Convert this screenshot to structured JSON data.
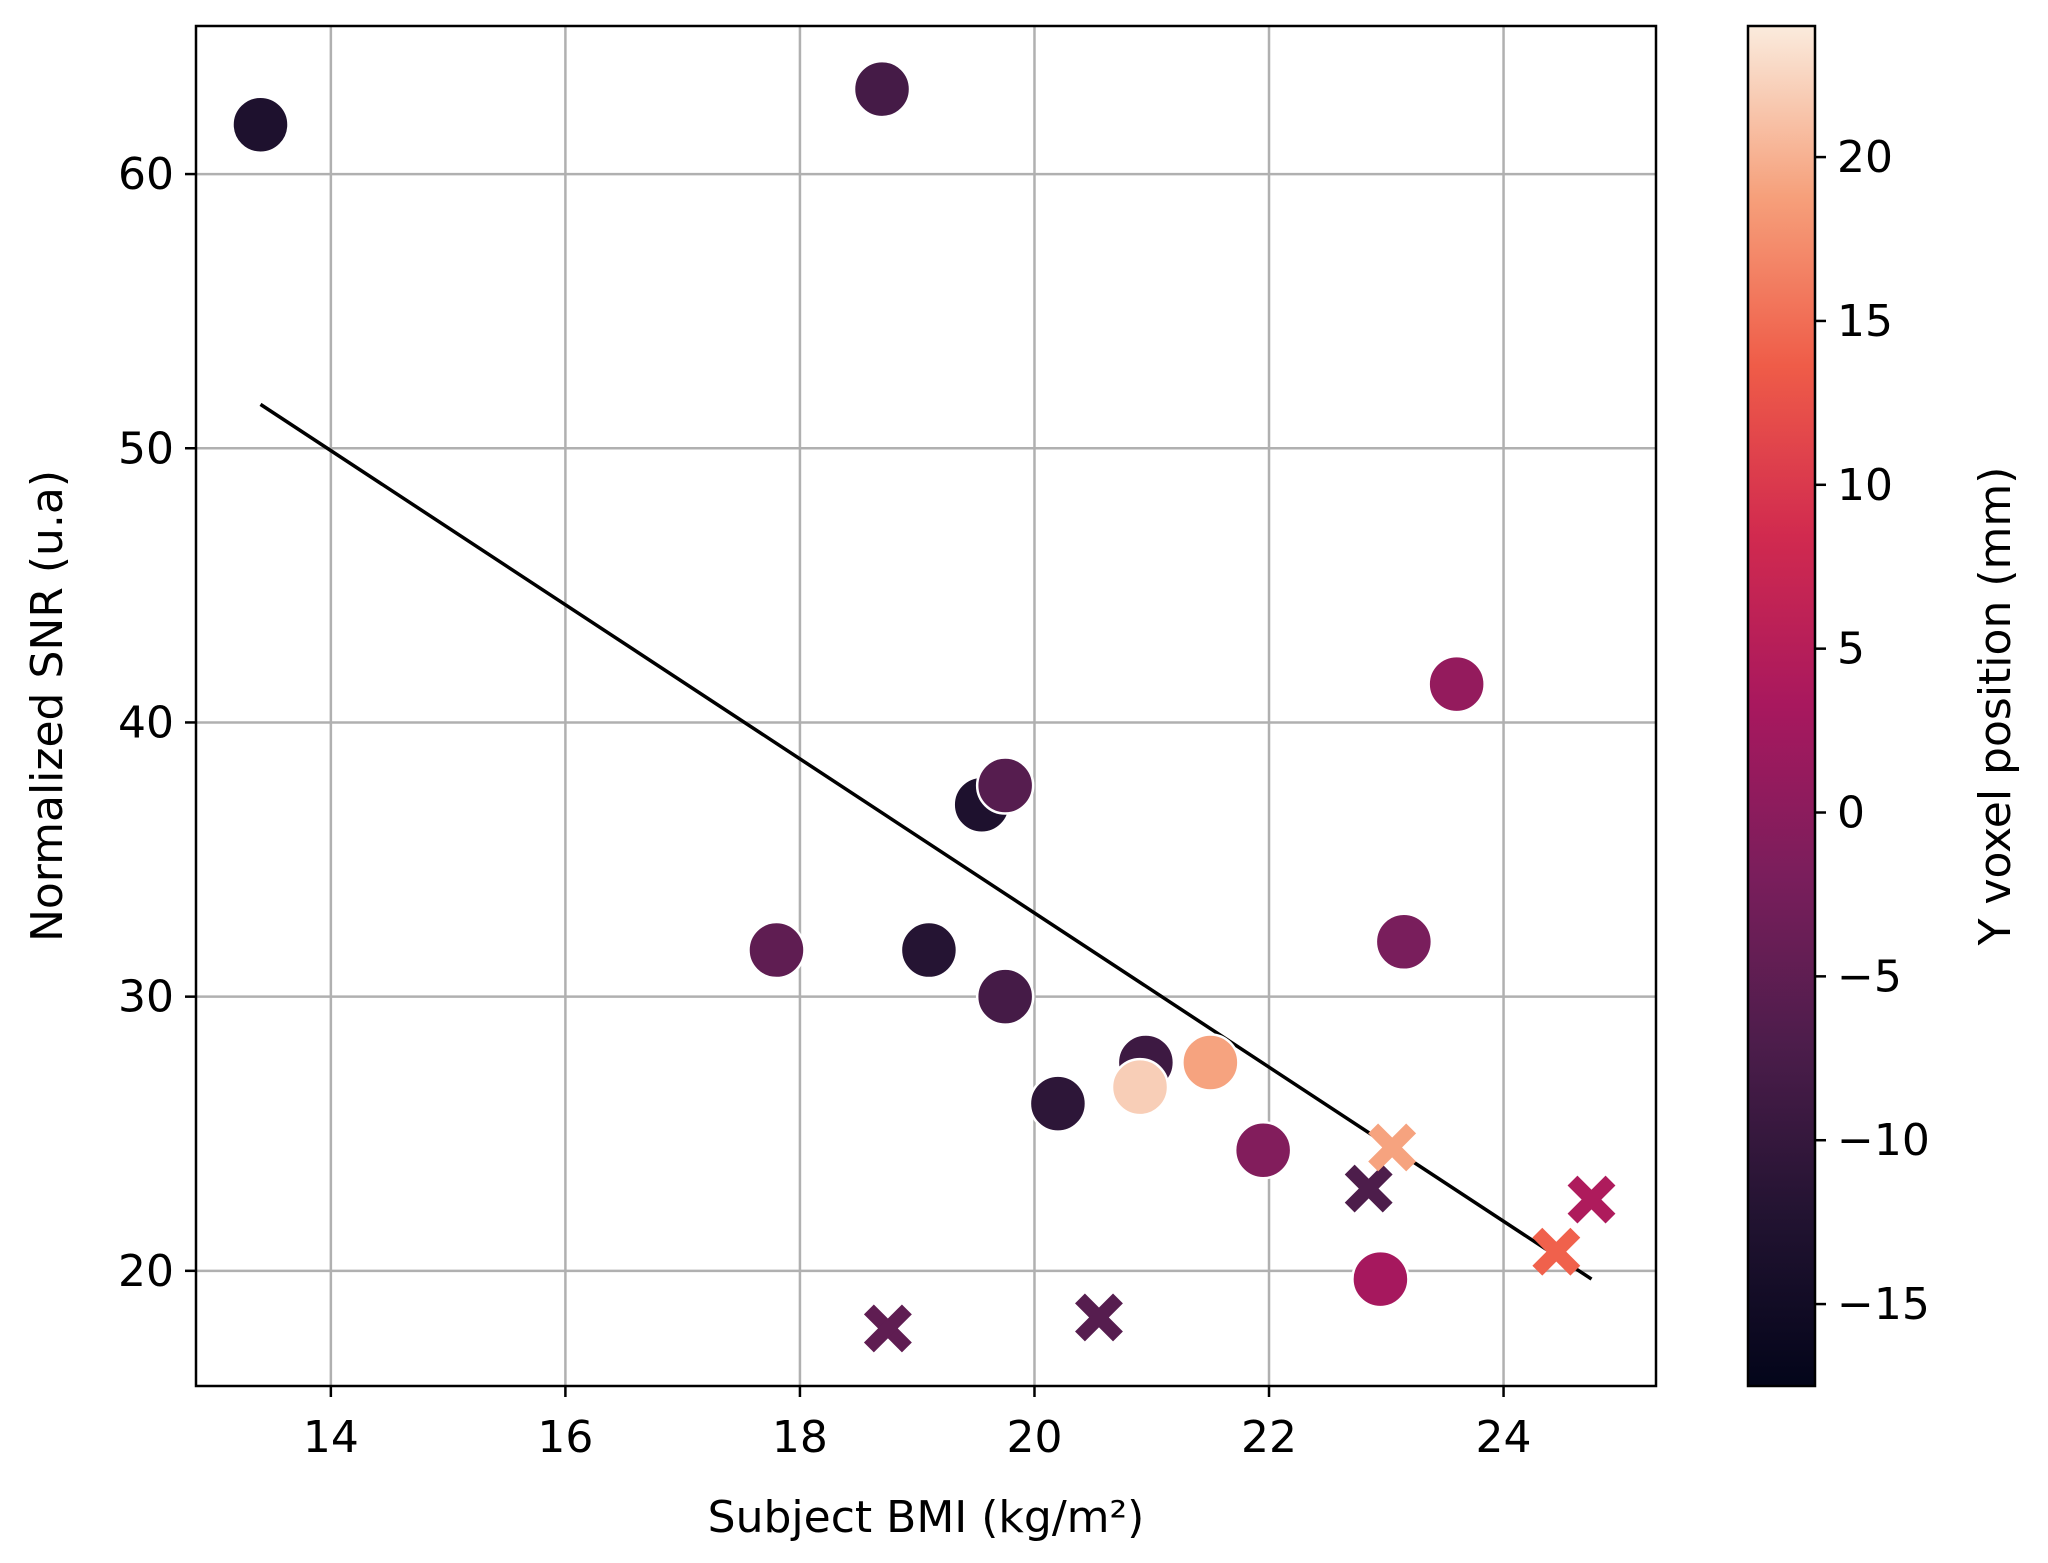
{
  "chart_data": {
    "type": "scatter",
    "title": "",
    "xlabel": "Subject BMI (kg/m²)",
    "ylabel": "Normalized SNR (u.a)",
    "xlim": [
      12.85,
      25.3
    ],
    "ylim": [
      15.8,
      65.4
    ],
    "xticks": [
      14,
      16,
      18,
      20,
      22,
      24
    ],
    "yticks": [
      20,
      30,
      40,
      50,
      60
    ],
    "grid": true,
    "legend": "none",
    "colorbar": {
      "label": "Y voxel position (mm)",
      "range": [
        -17.5,
        24
      ],
      "ticks": [
        -15,
        -10,
        -5,
        0,
        5,
        10,
        15,
        20
      ],
      "tick_labels": [
        "−15",
        "−10",
        "−5",
        "0",
        "5",
        "10",
        "15",
        "20"
      ],
      "colormap": "rocket"
    },
    "series": [
      {
        "marker": "circle",
        "points": [
          {
            "x": 13.4,
            "y": 61.8,
            "c": -13
          },
          {
            "x": 18.7,
            "y": 63.1,
            "c": -8
          },
          {
            "x": 19.55,
            "y": 37.0,
            "c": -13
          },
          {
            "x": 19.75,
            "y": 37.7,
            "c": -6
          },
          {
            "x": 17.8,
            "y": 31.7,
            "c": -5
          },
          {
            "x": 19.1,
            "y": 31.7,
            "c": -12
          },
          {
            "x": 19.75,
            "y": 30.0,
            "c": -8
          },
          {
            "x": 20.2,
            "y": 26.1,
            "c": -11
          },
          {
            "x": 20.95,
            "y": 27.6,
            "c": -9
          },
          {
            "x": 20.9,
            "y": 26.7,
            "c": 22
          },
          {
            "x": 21.5,
            "y": 27.6,
            "c": 19
          },
          {
            "x": 21.95,
            "y": 24.4,
            "c": -1
          },
          {
            "x": 23.6,
            "y": 41.4,
            "c": 1
          },
          {
            "x": 23.15,
            "y": 32.0,
            "c": -2
          },
          {
            "x": 22.95,
            "y": 19.7,
            "c": 3
          }
        ]
      },
      {
        "marker": "x",
        "points": [
          {
            "x": 18.75,
            "y": 17.9,
            "c": -5
          },
          {
            "x": 20.55,
            "y": 18.3,
            "c": -6
          },
          {
            "x": 22.85,
            "y": 23.0,
            "c": -7
          },
          {
            "x": 23.05,
            "y": 24.5,
            "c": 19
          },
          {
            "x": 24.45,
            "y": 20.7,
            "c": 14
          },
          {
            "x": 24.75,
            "y": 22.6,
            "c": 4
          }
        ]
      }
    ],
    "fit_line": {
      "x": [
        13.4,
        24.75
      ],
      "y": [
        51.6,
        19.7
      ],
      "color": "#000000"
    }
  }
}
